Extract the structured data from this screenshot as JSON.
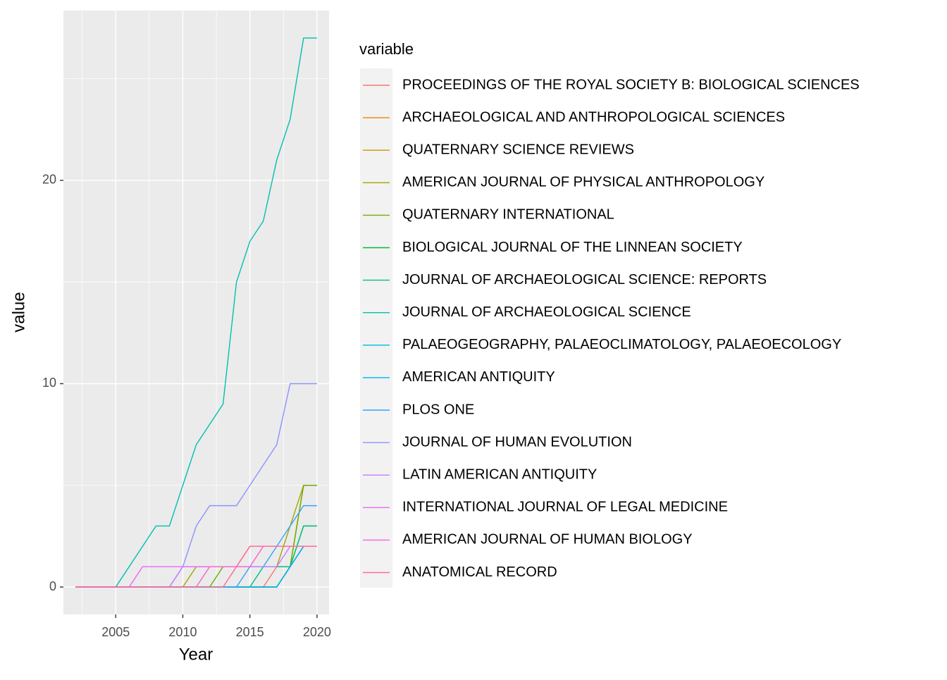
{
  "chart_data": {
    "type": "line",
    "x_label": "Year",
    "y_label": "value",
    "legend_title": "variable",
    "x": [
      2002,
      2003,
      2004,
      2005,
      2006,
      2007,
      2008,
      2009,
      2010,
      2011,
      2012,
      2013,
      2014,
      2015,
      2016,
      2017,
      2018,
      2019,
      2020
    ],
    "xlim": [
      2001.1,
      2020.9
    ],
    "xticks": [
      2005,
      2010,
      2015,
      2020
    ],
    "xminor": [
      2002.5,
      2007.5,
      2012.5,
      2017.5
    ],
    "ylim": [
      -1.35,
      28.35
    ],
    "yticks": [
      0,
      10,
      20
    ],
    "yminor": [
      5,
      15,
      25
    ],
    "grid": true,
    "legend": "right",
    "series": [
      {
        "name": "PROCEEDINGS OF THE ROYAL SOCIETY B: BIOLOGICAL SCIENCES",
        "color": "#F8766D",
        "values": [
          0,
          0,
          0,
          0,
          0,
          0,
          0,
          0,
          0,
          0,
          0,
          0,
          0,
          0,
          0,
          1,
          1,
          2,
          2
        ]
      },
      {
        "name": "ARCHAEOLOGICAL AND ANTHROPOLOGICAL SCIENCES",
        "color": "#E58700",
        "values": [
          0,
          0,
          0,
          0,
          0,
          0,
          0,
          0,
          0,
          0,
          0,
          0,
          0,
          0,
          0,
          0,
          1,
          5,
          5
        ]
      },
      {
        "name": "QUATERNARY SCIENCE REVIEWS",
        "color": "#C99800",
        "values": [
          0,
          0,
          0,
          0,
          0,
          0,
          0,
          0,
          0,
          0,
          0,
          0,
          0,
          0,
          0,
          0,
          1,
          5,
          5
        ]
      },
      {
        "name": "AMERICAN JOURNAL OF PHYSICAL ANTHROPOLOGY",
        "color": "#A3A500",
        "values": [
          0,
          0,
          0,
          0,
          0,
          0,
          0,
          0,
          0,
          1,
          1,
          1,
          1,
          1,
          1,
          1,
          3,
          5,
          5
        ]
      },
      {
        "name": "QUATERNARY INTERNATIONAL",
        "color": "#6BB100",
        "values": [
          0,
          0,
          0,
          0,
          0,
          0,
          0,
          0,
          0,
          0,
          0,
          1,
          1,
          1,
          1,
          1,
          1,
          5,
          5
        ]
      },
      {
        "name": "BIOLOGICAL JOURNAL OF THE LINNEAN SOCIETY",
        "color": "#00BA38",
        "values": [
          0,
          0,
          0,
          0,
          0,
          0,
          0,
          0,
          0,
          0,
          0,
          0,
          0,
          0,
          0,
          0,
          1,
          3,
          3
        ]
      },
      {
        "name": "JOURNAL OF ARCHAEOLOGICAL SCIENCE: REPORTS",
        "color": "#00BF7D",
        "values": [
          0,
          0,
          0,
          0,
          0,
          0,
          0,
          0,
          0,
          0,
          0,
          0,
          0,
          0,
          1,
          1,
          1,
          3,
          3
        ]
      },
      {
        "name": "JOURNAL OF ARCHAEOLOGICAL SCIENCE",
        "color": "#00C0AF",
        "values": [
          0,
          0,
          0,
          0,
          1,
          2,
          3,
          3,
          5,
          7,
          8,
          9,
          15,
          17,
          18,
          21,
          23,
          27,
          27
        ]
      },
      {
        "name": "PALAEOGEOGRAPHY, PALAEOCLIMATOLOGY, PALAEOECOLOGY",
        "color": "#00BCD8",
        "values": [
          0,
          0,
          0,
          0,
          0,
          0,
          0,
          0,
          0,
          0,
          0,
          0,
          0,
          0,
          0,
          0,
          1,
          2,
          2
        ]
      },
      {
        "name": "AMERICAN ANTIQUITY",
        "color": "#00B0F6",
        "values": [
          0,
          0,
          0,
          0,
          0,
          0,
          0,
          0,
          0,
          0,
          0,
          0,
          0,
          0,
          0,
          0,
          1,
          2,
          2
        ]
      },
      {
        "name": "PLOS ONE",
        "color": "#35A2FF",
        "values": [
          0,
          0,
          0,
          0,
          0,
          0,
          0,
          0,
          0,
          0,
          0,
          0,
          0,
          1,
          1,
          2,
          3,
          4,
          4
        ]
      },
      {
        "name": "JOURNAL OF HUMAN EVOLUTION",
        "color": "#8B93FF",
        "values": [
          0,
          0,
          0,
          0,
          0,
          0,
          0,
          0,
          1,
          3,
          4,
          4,
          4,
          5,
          6,
          7,
          10,
          10,
          10
        ]
      },
      {
        "name": "LATIN AMERICAN ANTIQUITY",
        "color": "#C77CFF",
        "values": [
          0,
          0,
          0,
          0,
          0,
          0,
          0,
          0,
          1,
          1,
          1,
          1,
          1,
          1,
          1,
          1,
          2,
          2,
          2
        ]
      },
      {
        "name": "INTERNATIONAL JOURNAL OF LEGAL MEDICINE",
        "color": "#E76BF3",
        "values": [
          0,
          0,
          0,
          0,
          0,
          1,
          1,
          1,
          1,
          1,
          1,
          1,
          1,
          2,
          2,
          2,
          2,
          2,
          2
        ]
      },
      {
        "name": "AMERICAN JOURNAL OF HUMAN BIOLOGY",
        "color": "#FD61D1",
        "values": [
          0,
          0,
          0,
          0,
          0,
          0,
          0,
          0,
          0,
          0,
          1,
          1,
          1,
          1,
          2,
          2,
          2,
          2,
          2
        ]
      },
      {
        "name": "ANATOMICAL RECORD",
        "color": "#FF6C91",
        "values": [
          0,
          0,
          0,
          0,
          0,
          0,
          0,
          0,
          0,
          0,
          0,
          0,
          1,
          2,
          2,
          2,
          2,
          2,
          2
        ]
      }
    ]
  }
}
